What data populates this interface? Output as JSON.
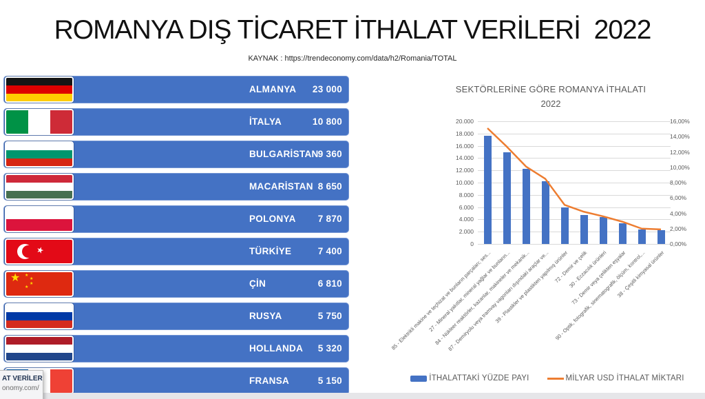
{
  "slide": {
    "title": "ROMANYA DIŞ TİCARET İTHALAT VERİLERİ  2022",
    "source": "KAYNAK : https://trendeconomy.com/data/h2/Romania/TOTAL"
  },
  "countries": [
    {
      "name": "ALMANYA",
      "value": "23 000",
      "flag": "germany"
    },
    {
      "name": "İTALYA",
      "value": "10 800",
      "flag": "italy"
    },
    {
      "name": "BULGARİSTAN",
      "value": "9 360",
      "flag": "bulgaria"
    },
    {
      "name": "MACARİSTAN",
      "value": "8 650",
      "flag": "hungary"
    },
    {
      "name": "POLONYA",
      "value": "7 870",
      "flag": "poland"
    },
    {
      "name": "TÜRKİYE",
      "value": "7 400",
      "flag": "turkey"
    },
    {
      "name": "ÇİN",
      "value": "6 810",
      "flag": "china"
    },
    {
      "name": "RUSYA",
      "value": "5 750",
      "flag": "russia"
    },
    {
      "name": "HOLLANDA",
      "value": "5 320",
      "flag": "netherlands"
    },
    {
      "name": "FRANSA",
      "value": "5 150",
      "flag": "france"
    }
  ],
  "flags": {
    "germany": {
      "type": "h",
      "colors": [
        "#151515",
        "#DD0000",
        "#FFCC00"
      ]
    },
    "italy": {
      "type": "v",
      "colors": [
        "#009246",
        "#FFFFFF",
        "#CE2B37"
      ]
    },
    "bulgaria": {
      "type": "h",
      "colors": [
        "#FFFFFF",
        "#00966E",
        "#D62612"
      ]
    },
    "hungary": {
      "type": "h",
      "colors": [
        "#CE2939",
        "#FFFFFF",
        "#477050"
      ]
    },
    "poland": {
      "type": "h",
      "colors": [
        "#FFFFFF",
        "#DC143C"
      ]
    },
    "turkey": {
      "type": "turkey",
      "colors": [
        "#E30A17",
        "#FFFFFF"
      ]
    },
    "china": {
      "type": "china",
      "colors": [
        "#DE2910",
        "#FFDE00"
      ]
    },
    "russia": {
      "type": "h",
      "colors": [
        "#FFFFFF",
        "#0039A6",
        "#D52B1E"
      ]
    },
    "netherlands": {
      "type": "h",
      "colors": [
        "#AE1C28",
        "#FFFFFF",
        "#21468B"
      ]
    },
    "france": {
      "type": "v",
      "colors": [
        "#0055A4",
        "#FFFFFF",
        "#EF4135"
      ]
    }
  },
  "chart_data": {
    "type": "bar+line",
    "title": "SEKTÖRLERİNE GÖRE ROMANYA İTHALATI",
    "subtitle": "2022",
    "categories": [
      "85 - Elektrikli makine ve teçhizat ve bunların parçaları; ses...",
      "27 - Mineral yakıtlar, mineral yağlar ve bunların...",
      "84 - Nükleer reaktörler, kazanlar, makineler ve mekanik...",
      "87 - Demiryolu veya tramvay vagonları dışındaki araçlar ve...",
      "39 - Plastikler ve plastikten yapılmış ürünler",
      "72 - Demir ve çelik",
      "30 - Eczacılık ürünleri",
      "73 - Demir veya çelikten eşyalar",
      "90 - Optik, fotografik, sinematografik, ölçüm, kontrol,...",
      "38 - Çeşitli kimyasal ürünler"
    ],
    "series": [
      {
        "name": "İTHALATTAKİ YÜZDE PAYI",
        "type": "bar",
        "axis": "left",
        "color": "#4472C4",
        "values": [
          17600,
          15000,
          12300,
          10200,
          6000,
          4700,
          4400,
          3400,
          2400,
          2200
        ]
      },
      {
        "name": "MİLYAR USD İTHALAT MİKTARI",
        "type": "line",
        "axis": "right",
        "color": "#ED7D31",
        "values": [
          15.1,
          12.7,
          10.1,
          8.5,
          5.1,
          4.2,
          3.6,
          2.9,
          2.0,
          1.9
        ]
      }
    ],
    "y_left": {
      "min": 0,
      "max": 20000,
      "ticks": [
        "20.000",
        "18.000",
        "16.000",
        "14.000",
        "12.000",
        "10.000",
        "8.000",
        "6.000",
        "4.000",
        "2.000",
        "0"
      ]
    },
    "y_right": {
      "min": 0,
      "max": 16,
      "ticks": [
        "16,00%",
        "14,00%",
        "12,00%",
        "10,00%",
        "8,00%",
        "6,00%",
        "4,00%",
        "2,00%",
        "0,00%"
      ]
    },
    "grid": true,
    "legend_position": "bottom"
  },
  "tooltip": {
    "line1": "AT VERİLERİ",
    "line2": "onomy.com/"
  }
}
